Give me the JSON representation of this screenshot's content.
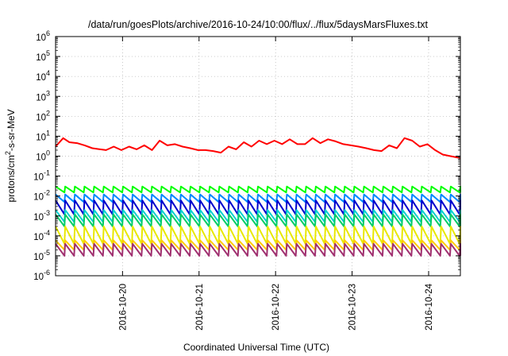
{
  "chart_data": {
    "type": "line",
    "title": "/data/run/goesPlots/archive/2016-10-24/10:00/flux/../flux/5daysMarsFluxes.txt",
    "xlabel": "Coordinated Universal Time (UTC)",
    "ylabel": "protons/cm²-s-sr-MeV",
    "ylabel_parts": {
      "before": "protons/cm",
      "sup": "2",
      "after": "-s-sr-MeV"
    },
    "yscale": "log",
    "ylim": [
      1e-06,
      1000000.0
    ],
    "xlim": [
      "2016-10-19 03:00",
      "2016-10-24 10:00"
    ],
    "grid": true,
    "ytick_labels": [
      {
        "base": "10",
        "exp": "-6"
      },
      {
        "base": "10",
        "exp": "-5"
      },
      {
        "base": "10",
        "exp": "-4"
      },
      {
        "base": "10",
        "exp": "-3"
      },
      {
        "base": "10",
        "exp": "-2"
      },
      {
        "base": "10",
        "exp": "-1"
      },
      {
        "base": "10",
        "exp": "0"
      },
      {
        "base": "10",
        "exp": "1"
      },
      {
        "base": "10",
        "exp": "2"
      },
      {
        "base": "10",
        "exp": "3"
      },
      {
        "base": "10",
        "exp": "4"
      },
      {
        "base": "10",
        "exp": "5"
      },
      {
        "base": "10",
        "exp": "6"
      }
    ],
    "xtick_labels": [
      "2016-10-20",
      "2016-10-21",
      "2016-10-22",
      "2016-10-23",
      "2016-10-24"
    ],
    "series": [
      {
        "color": "#ff0000",
        "type": "points",
        "x": [
          0.0,
          0.1,
          0.18,
          0.28,
          0.38,
          0.48,
          0.58,
          0.66,
          0.76,
          0.86,
          0.96,
          1.06,
          1.16,
          1.26,
          1.36,
          1.46,
          1.56,
          1.66,
          1.76,
          1.86,
          1.96,
          2.06,
          2.16,
          2.26,
          2.36,
          2.46,
          2.56,
          2.66,
          2.76,
          2.86,
          2.96,
          3.06,
          3.16,
          3.26,
          3.36,
          3.46,
          3.56,
          3.66,
          3.76,
          3.86,
          3.96,
          4.06,
          4.16,
          4.26,
          4.36,
          4.46,
          4.56,
          4.66,
          4.76,
          4.86,
          4.96,
          5.06,
          5.16,
          5.29
        ],
        "y": [
          3.0,
          8.0,
          5.0,
          4.5,
          3.5,
          2.5,
          2.2,
          2.0,
          3.0,
          2.0,
          3.0,
          2.2,
          3.5,
          2.0,
          6.0,
          3.5,
          4.0,
          3.0,
          2.5,
          2.0,
          2.0,
          1.8,
          1.5,
          3.0,
          2.2,
          5.0,
          3.0,
          6.0,
          4.0,
          6.0,
          4.0,
          7.0,
          4.0,
          4.0,
          8.0,
          4.5,
          7.0,
          5.5,
          4.0,
          3.5,
          3.0,
          2.5,
          2.0,
          1.8,
          3.5,
          2.5,
          8.0,
          6.0,
          3.0,
          4.0,
          2.0,
          1.2,
          1.0,
          0.8
        ]
      },
      {
        "color": "#00ff00",
        "type": "sawtooth",
        "high": 0.03,
        "low": 0.015,
        "teeth": 42
      },
      {
        "color": "#0088ff",
        "type": "sawtooth",
        "high": 0.012,
        "low": 0.005,
        "teeth": 42
      },
      {
        "color": "#0000cc",
        "type": "sawtooth",
        "high": 0.006,
        "low": 0.0012,
        "teeth": 42
      },
      {
        "color": "#00d0d0",
        "type": "sawtooth",
        "high": 0.002,
        "low": 0.0005,
        "teeth": 42
      },
      {
        "color": "#00cc66",
        "type": "sawtooth",
        "high": 0.0012,
        "low": 0.0003,
        "teeth": 42
      },
      {
        "color": "#e8e800",
        "type": "sawtooth",
        "high": 0.0003,
        "low": 4e-05,
        "teeth": 42
      },
      {
        "color": "#ffcc00",
        "type": "sawtooth",
        "high": 6e-05,
        "low": 2e-05,
        "teeth": 42
      },
      {
        "color": "#a03070",
        "type": "sawtooth",
        "high": 4e-05,
        "low": 1e-05,
        "teeth": 42
      }
    ]
  }
}
